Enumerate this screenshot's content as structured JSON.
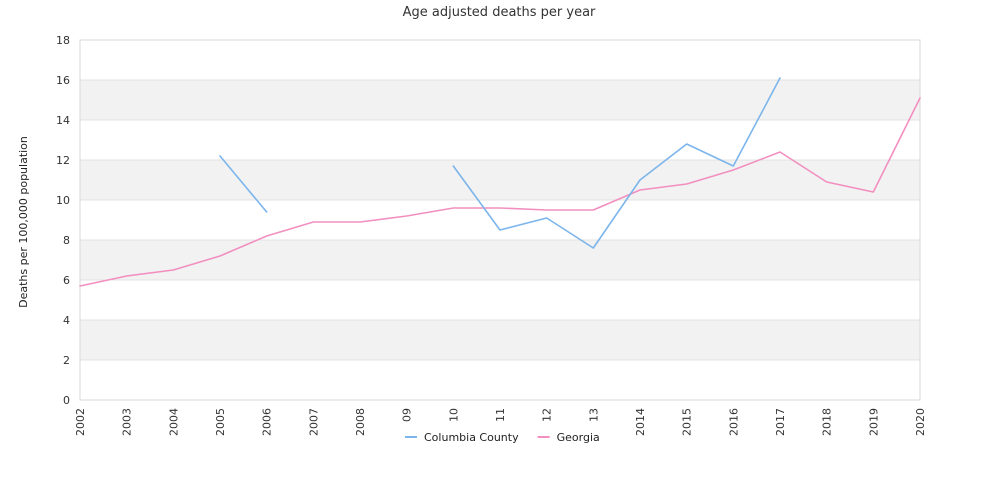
{
  "chart_data": {
    "type": "line",
    "title": "Age adjusted deaths per year",
    "xlabel": "",
    "ylabel": "Deaths per 100,000 population",
    "ylim": [
      0,
      18
    ],
    "yticks": [
      0,
      2,
      4,
      6,
      8,
      10,
      12,
      14,
      16,
      18
    ],
    "categories": [
      "2002",
      "2003",
      "2004",
      "2005",
      "2006",
      "2007",
      "2008",
      "09",
      "10",
      "11",
      "12",
      "13",
      "2014",
      "2015",
      "2016",
      "2017",
      "2018",
      "2019",
      "2020"
    ],
    "grid": true,
    "legend_position": "bottom",
    "series": [
      {
        "name": "Columbia County",
        "color": "#7cb5ec",
        "values": [
          null,
          null,
          null,
          12.2,
          9.4,
          null,
          null,
          null,
          11.7,
          8.5,
          9.1,
          7.6,
          11.0,
          12.8,
          11.7,
          16.1,
          null,
          null,
          null
        ]
      },
      {
        "name": "Georgia",
        "color": "#f28fc0",
        "values": [
          5.7,
          6.2,
          6.5,
          7.2,
          8.2,
          8.9,
          8.9,
          9.2,
          9.6,
          9.6,
          9.5,
          9.5,
          10.5,
          10.8,
          11.5,
          12.4,
          10.9,
          10.4,
          15.1
        ]
      }
    ]
  }
}
